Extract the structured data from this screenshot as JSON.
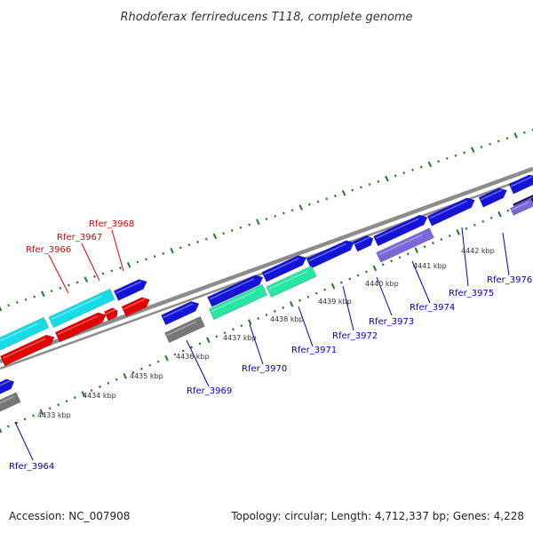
{
  "title": "Rhodoferax ferrireducens T118, complete genome",
  "colors": {
    "dots": "#1f7a1f",
    "backbone": "#8c8c8c",
    "plus_strand": "#1414d9",
    "minus_strand": "#1414d9",
    "red_gene": "#e30000",
    "cyan_gene": "#16dce8",
    "teal_gene": "#27e6a3",
    "purple_gene": "#7a68d8",
    "gray_gene": "#777777",
    "navy_gene": "#0a0a6e",
    "label_blue": "#0000c0",
    "label_red": "#e00000"
  },
  "kbp_labels": [
    "4433 kbp",
    "4434 kbp",
    "4435 kbp",
    "4436 kbp",
    "4437 kbp",
    "4438 kbp",
    "4439 kbp",
    "4440 kbp",
    "4441 kbp",
    "4442 kbp"
  ],
  "gene_labels": [
    {
      "text": "Rfer_3964",
      "color": "label_blue"
    },
    {
      "text": "Rfer_3966",
      "color": "label_red"
    },
    {
      "text": "Rfer_3967",
      "color": "label_red"
    },
    {
      "text": "Rfer_3968",
      "color": "label_red"
    },
    {
      "text": "Rfer_3969",
      "color": "label_blue"
    },
    {
      "text": "Rfer_3970",
      "color": "label_blue"
    },
    {
      "text": "Rfer_3971",
      "color": "label_blue"
    },
    {
      "text": "Rfer_3972",
      "color": "label_blue"
    },
    {
      "text": "Rfer_3973",
      "color": "label_blue"
    },
    {
      "text": "Rfer_3974",
      "color": "label_blue"
    },
    {
      "text": "Rfer_3975",
      "color": "label_blue"
    },
    {
      "text": "Rfer_3976",
      "color": "label_blue"
    }
  ],
  "footer": {
    "accession": "Accession: NC_007908",
    "stats": "Topology: circular; Length: 4,712,337 bp; Genes: 4,228"
  }
}
